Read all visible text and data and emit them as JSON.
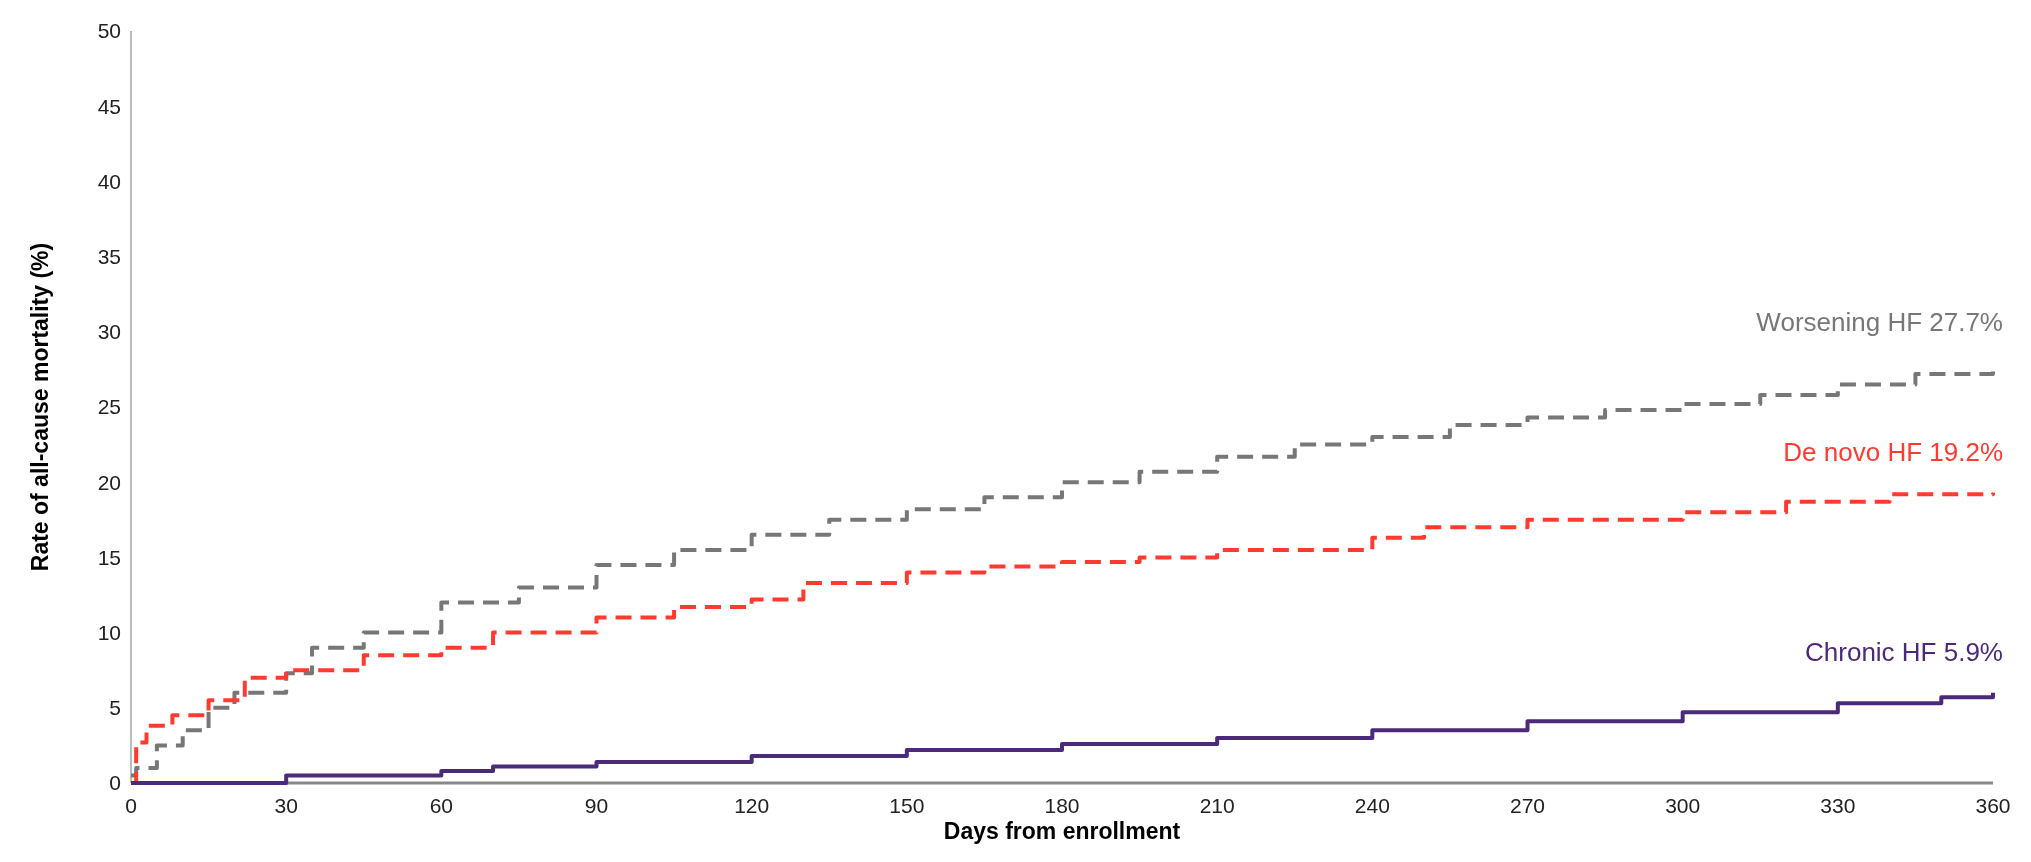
{
  "chart_data": {
    "type": "step",
    "xlabel": "Days from enrollment",
    "ylabel": "Rate of all-cause mortality (%)",
    "xlim": [
      0,
      360
    ],
    "xticks": [
      0,
      30,
      60,
      90,
      120,
      150,
      180,
      210,
      240,
      270,
      300,
      330,
      360
    ],
    "ylim": [
      0,
      50
    ],
    "yticks": [
      0,
      5,
      10,
      15,
      20,
      25,
      30,
      35,
      40,
      45,
      50
    ],
    "grid": false,
    "series": [
      {
        "name": "Worsening HF  27.7%",
        "color": "#777777",
        "line_style": "dashed",
        "x": [
          0,
          1,
          5,
          10,
          15,
          20,
          30,
          35,
          45,
          60,
          75,
          90,
          105,
          120,
          135,
          150,
          165,
          180,
          195,
          210,
          225,
          240,
          255,
          270,
          285,
          300,
          315,
          330,
          345,
          360
        ],
        "values": [
          0.5,
          1,
          2.5,
          3.5,
          5,
          6,
          7.3,
          9,
          10,
          12,
          13,
          14.5,
          15.5,
          16.5,
          17.5,
          18.2,
          19,
          20,
          20.7,
          21.7,
          22.5,
          23,
          23.8,
          24.3,
          24.8,
          25.2,
          25.8,
          26.5,
          27.2,
          27.9
        ]
      },
      {
        "name": "De novo HF  19.2%",
        "color": "#ff3b30",
        "line_style": "dashed",
        "x": [
          0,
          1,
          3,
          8,
          15,
          22,
          30,
          45,
          60,
          70,
          90,
          105,
          120,
          130,
          150,
          165,
          180,
          195,
          210,
          240,
          250,
          270,
          300,
          320,
          340,
          360
        ],
        "values": [
          0,
          2.7,
          3.8,
          4.5,
          5.5,
          7,
          7.5,
          8.5,
          9,
          10,
          11,
          11.7,
          12.2,
          13.3,
          14,
          14.4,
          14.7,
          15,
          15.5,
          16.3,
          17,
          17.5,
          18,
          18.7,
          19.2,
          19.3
        ]
      },
      {
        "name": "Chronic HF  5.9%",
        "color": "#4b2a7a",
        "line_style": "solid",
        "x": [
          0,
          30,
          60,
          70,
          90,
          120,
          150,
          180,
          210,
          240,
          270,
          300,
          330,
          350,
          360
        ],
        "values": [
          0,
          0.5,
          0.8,
          1.1,
          1.4,
          1.8,
          2.2,
          2.6,
          3,
          3.5,
          4.1,
          4.7,
          5.3,
          5.7,
          6
        ]
      }
    ]
  }
}
